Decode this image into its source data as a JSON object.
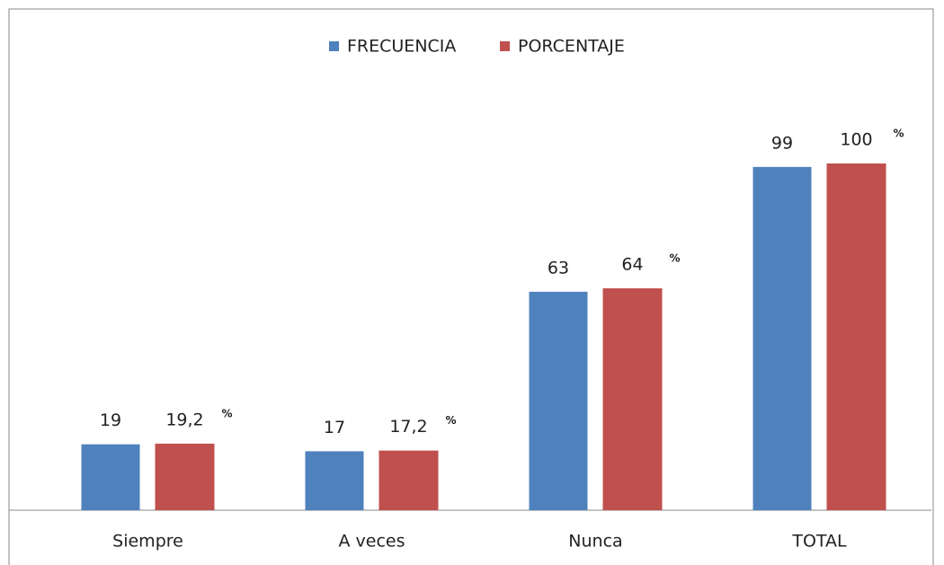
{
  "chart_data": {
    "type": "bar",
    "categories": [
      "Siempre",
      "A veces",
      "Nunca",
      "TOTAL"
    ],
    "series": [
      {
        "name": "FRECUENCIA",
        "color": "#4f81bd",
        "values": [
          19,
          17,
          63,
          99
        ]
      },
      {
        "name": "PORCENTAJE",
        "color": "#c0504d",
        "values": [
          19.2,
          17.2,
          64,
          100
        ],
        "value_labels": [
          "19,2",
          "17,2",
          "64",
          "100"
        ],
        "percent_marks": [
          "%",
          "%",
          "%",
          "%"
        ]
      }
    ],
    "legend": "top"
  }
}
